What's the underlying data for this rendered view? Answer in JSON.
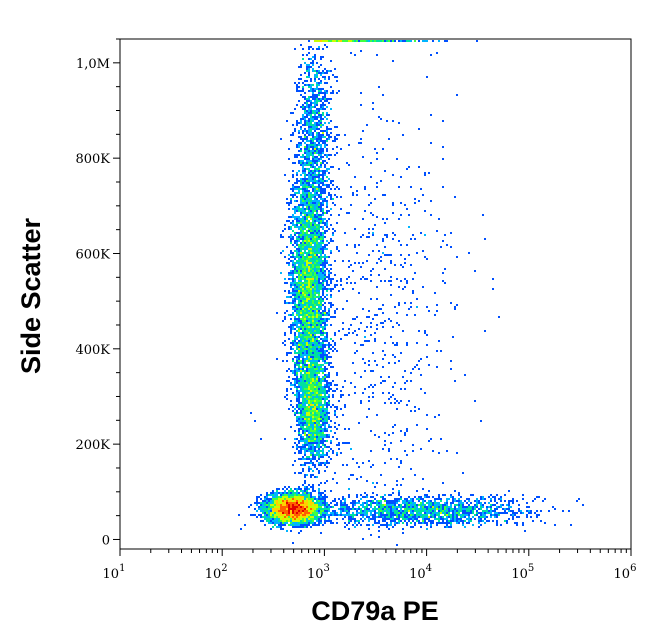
{
  "chart_data": {
    "type": "scatter",
    "subtype": "flow-cytometry-density",
    "xlabel": "CD79a PE",
    "ylabel": "Side Scatter",
    "x_scale": "log",
    "xlim": [
      10,
      1000000
    ],
    "ylim": [
      -20000,
      1050000
    ],
    "x_ticks": [
      {
        "value": 10,
        "base": "10",
        "exp": "1"
      },
      {
        "value": 100,
        "base": "10",
        "exp": "2"
      },
      {
        "value": 1000,
        "base": "10",
        "exp": "3"
      },
      {
        "value": 10000,
        "base": "10",
        "exp": "4"
      },
      {
        "value": 100000,
        "base": "10",
        "exp": "5"
      },
      {
        "value": 1000000,
        "base": "10",
        "exp": "6"
      }
    ],
    "y_ticks": [
      {
        "value": 0,
        "label": "0"
      },
      {
        "value": 200000,
        "label": "200K"
      },
      {
        "value": 400000,
        "label": "400K"
      },
      {
        "value": 600000,
        "label": "600K"
      },
      {
        "value": 800000,
        "label": "800K"
      },
      {
        "value": 1000000,
        "label": "1,0M"
      }
    ],
    "density_colormap": [
      "#0000c8",
      "#0050ff",
      "#00b4ff",
      "#00e0a0",
      "#40ff40",
      "#c8ff00",
      "#ffd000",
      "#ff6000",
      "#e00000"
    ],
    "populations": [
      {
        "x_center": 500,
        "y_center": 65000,
        "x_spread_log": 0.13,
        "y_spread": 15000,
        "density": "very-high"
      },
      {
        "x_center": 700,
        "y_center": 520000,
        "x_spread_log": 0.09,
        "y_spread": 130000,
        "density": "high"
      },
      {
        "x_center": 780,
        "y_center": 270000,
        "x_spread_log": 0.08,
        "y_spread": 60000,
        "density": "medium"
      },
      {
        "x_center": 800,
        "y_center": 850000,
        "x_spread_log": 0.09,
        "y_spread": 100000,
        "density": "low"
      },
      {
        "x_center": 8000,
        "y_center": 60000,
        "x_spread_log": 0.5,
        "y_spread": 15000,
        "density": "medium"
      },
      {
        "x_center": 3000,
        "y_center": 450000,
        "x_spread_log": 0.4,
        "y_spread": 250000,
        "density": "sparse"
      }
    ]
  }
}
